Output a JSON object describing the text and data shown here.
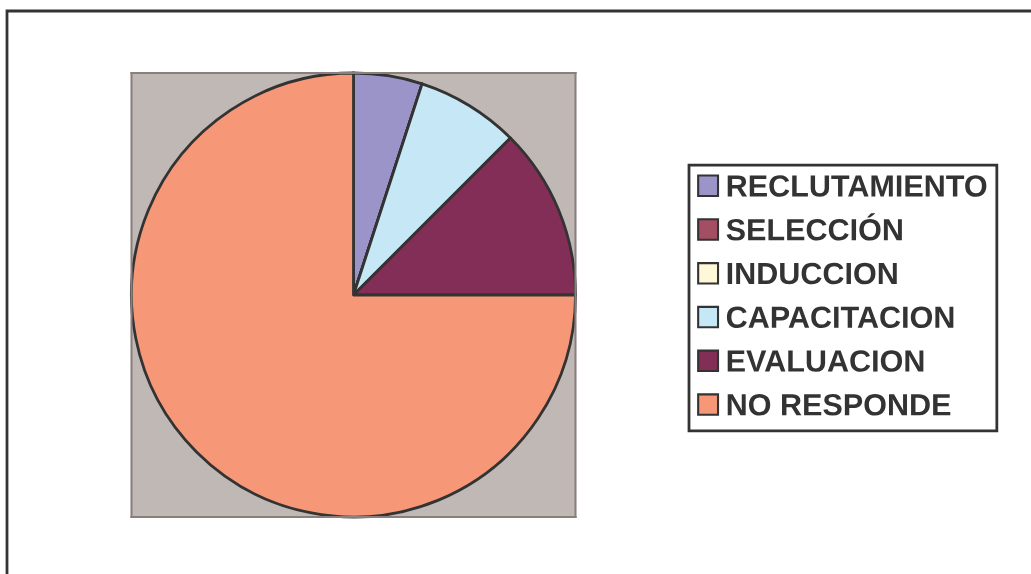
{
  "chart_data": {
    "type": "pie",
    "categories": [
      "RECLUTAMIENTO",
      "SELECCIÓN",
      "INDUCCION",
      "CAPACITACION",
      "EVALUACION",
      "NO RESPONDE"
    ],
    "values": [
      5,
      0,
      0,
      7.5,
      12.5,
      75
    ],
    "colors": [
      "#9a94c8",
      "#a34e62",
      "#fff8d8",
      "#c6e8f6",
      "#832e56",
      "#f69877"
    ],
    "legend": "right"
  }
}
